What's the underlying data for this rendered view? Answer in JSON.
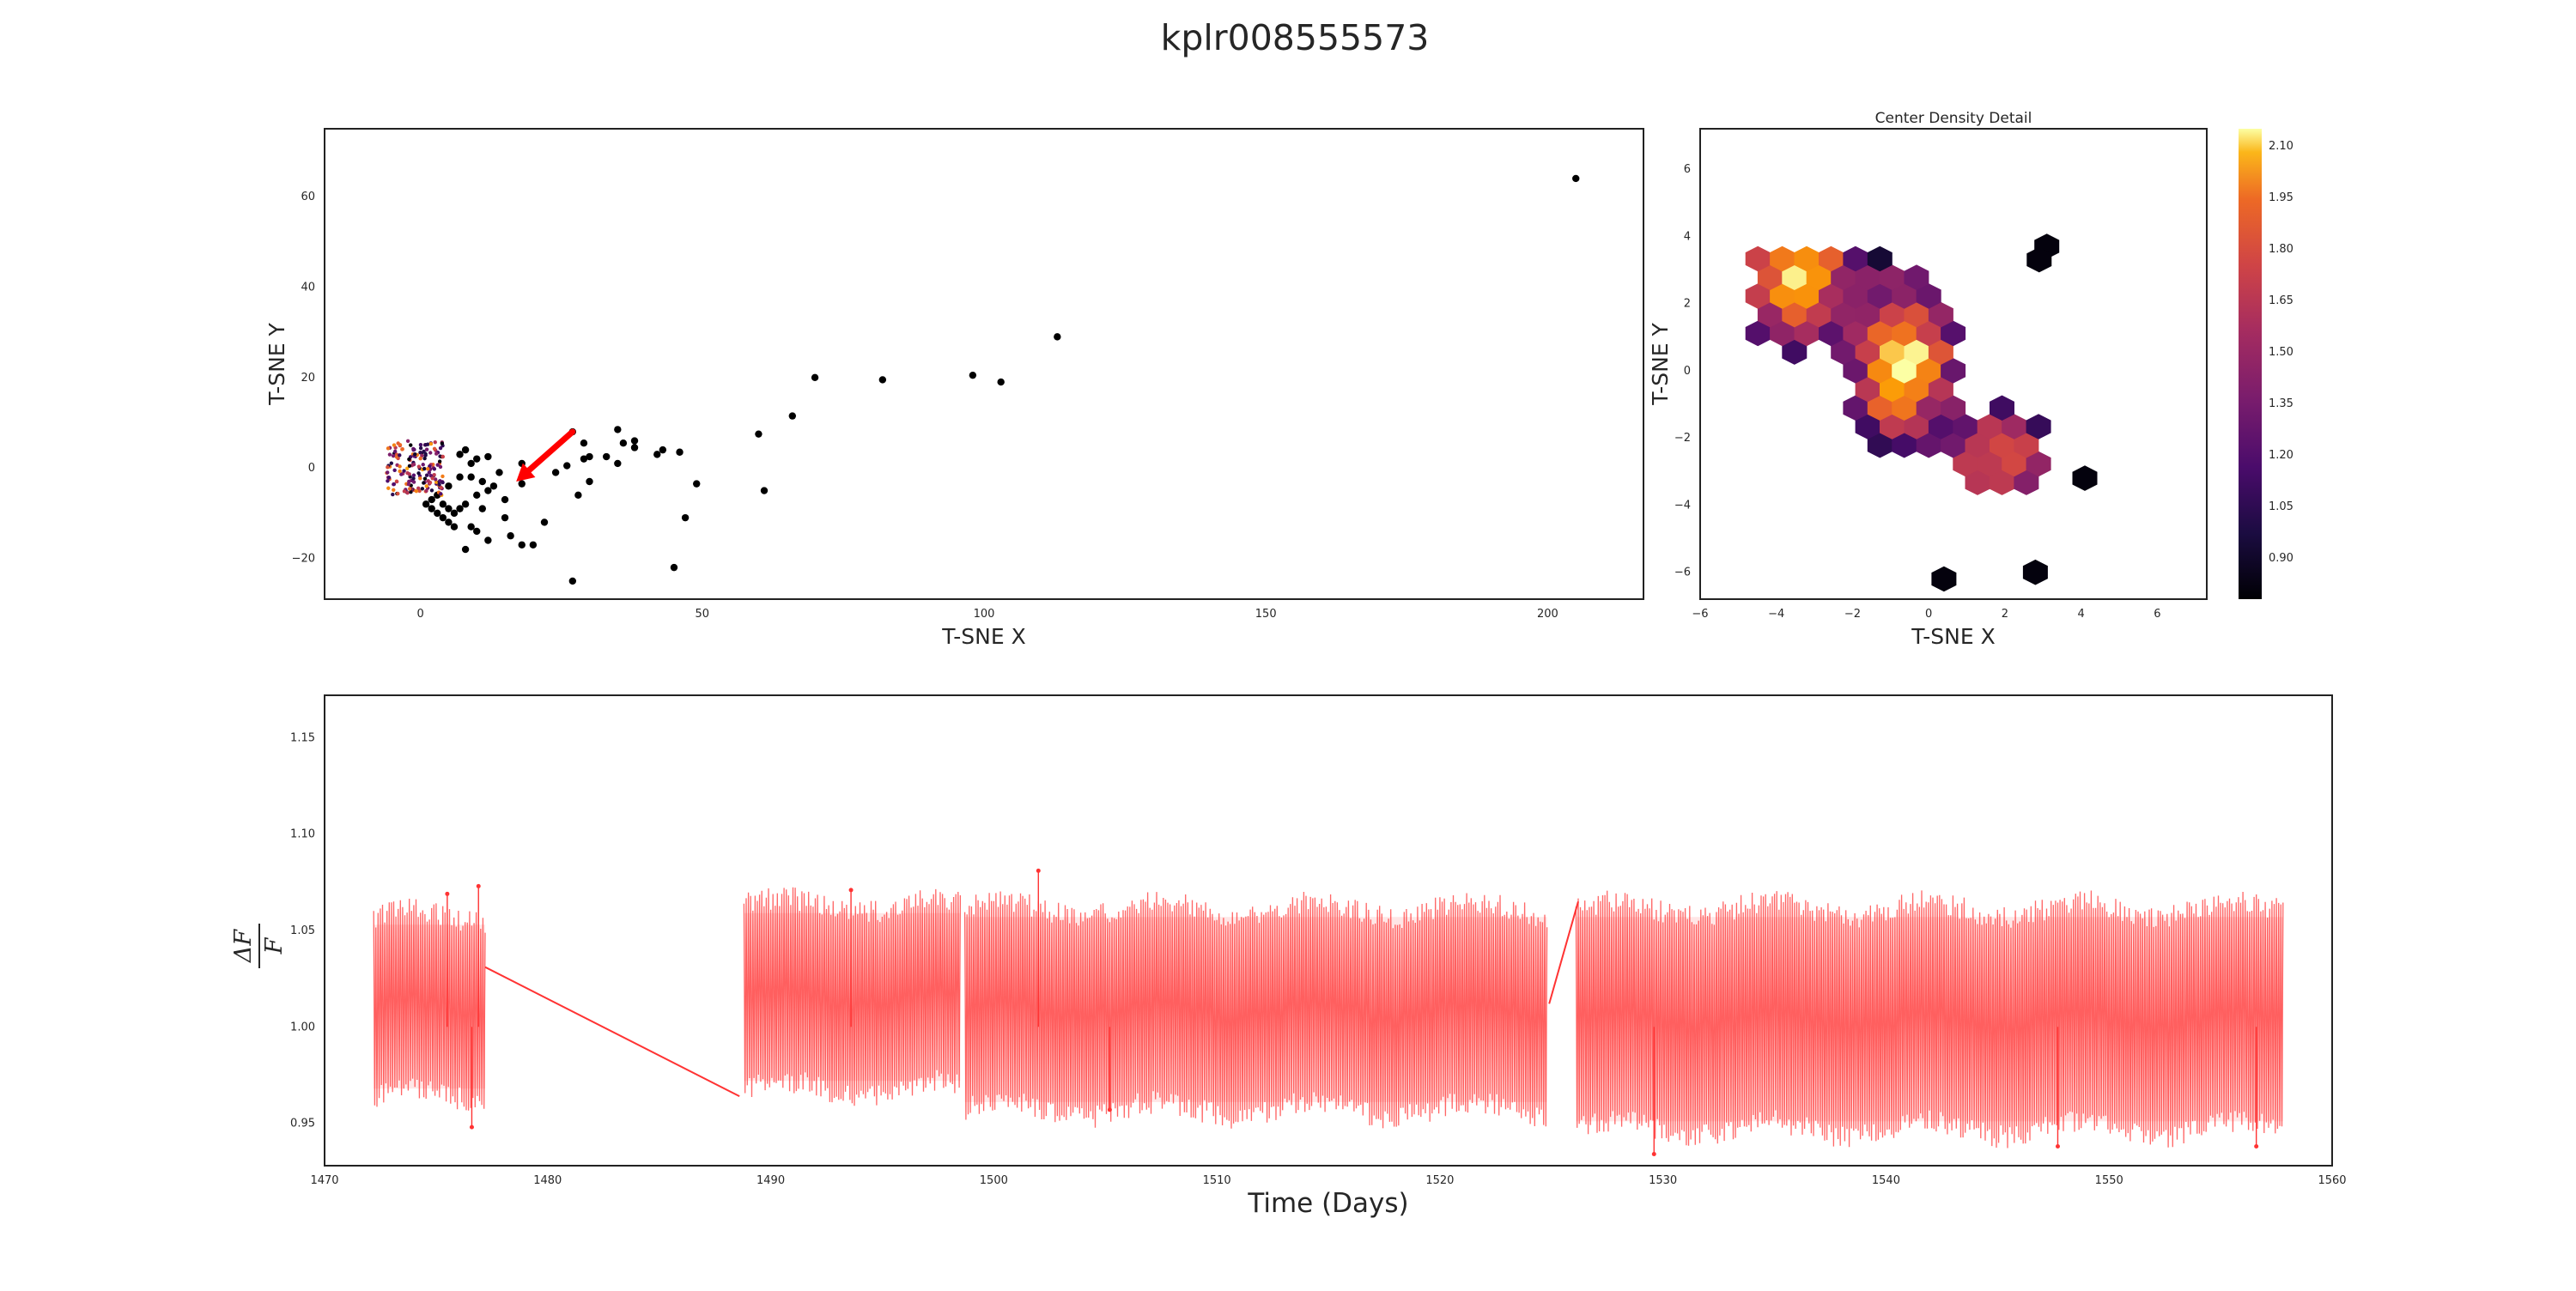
{
  "figure_title": "kplr008555573",
  "colors": {
    "scatter_point": "#000000",
    "arrow": "#ff0000",
    "lightcurve": "#ff3333",
    "frame": "#222222"
  },
  "chart_data": [
    {
      "id": "tsne-overview",
      "type": "scatter",
      "title": "",
      "xlabel": "T-SNE X",
      "ylabel": "T-SNE Y",
      "xlim": [
        -17,
        217
      ],
      "ylim": [
        -29,
        75
      ],
      "xticks": [
        0,
        50,
        100,
        150,
        200
      ],
      "yticks": [
        -20,
        0,
        20,
        40,
        60
      ],
      "grid": false,
      "points": [
        [
          205,
          64
        ],
        [
          113,
          29
        ],
        [
          103,
          19
        ],
        [
          98,
          20.5
        ],
        [
          82,
          19.5
        ],
        [
          70,
          20
        ],
        [
          66,
          11.5
        ],
        [
          60,
          7.5
        ],
        [
          61,
          -5
        ],
        [
          49,
          -3.5
        ],
        [
          47,
          -11
        ],
        [
          45,
          -22
        ],
        [
          46,
          3.5
        ],
        [
          43,
          4
        ],
        [
          42,
          3
        ],
        [
          38,
          6
        ],
        [
          38,
          4.5
        ],
        [
          36,
          5.5
        ],
        [
          35,
          8.5
        ],
        [
          35,
          1
        ],
        [
          33,
          2.5
        ],
        [
          30,
          2.5
        ],
        [
          29,
          2
        ],
        [
          29,
          5.5
        ],
        [
          30,
          -3
        ],
        [
          28,
          -6
        ],
        [
          27,
          -25
        ],
        [
          27,
          8
        ],
        [
          26,
          0.5
        ],
        [
          24,
          -1
        ],
        [
          22,
          -12
        ],
        [
          20,
          -17
        ],
        [
          18,
          -3.5
        ],
        [
          18,
          1
        ],
        [
          18,
          -17
        ],
        [
          16,
          -15
        ],
        [
          15,
          -7
        ],
        [
          15,
          -11
        ],
        [
          14,
          -1
        ],
        [
          13,
          -4
        ],
        [
          12,
          -16
        ],
        [
          12,
          -5
        ],
        [
          12,
          2.5
        ],
        [
          11,
          -3
        ],
        [
          11,
          -9
        ],
        [
          10,
          2
        ],
        [
          10,
          -14
        ],
        [
          10,
          -6
        ],
        [
          9,
          -13
        ],
        [
          9,
          -2
        ],
        [
          9,
          1
        ],
        [
          8,
          -18
        ],
        [
          8,
          -8
        ],
        [
          8,
          4
        ],
        [
          7,
          -9
        ],
        [
          7,
          3
        ],
        [
          7,
          -2
        ],
        [
          6,
          -13
        ],
        [
          6,
          -10
        ],
        [
          5,
          -9
        ],
        [
          5,
          -12
        ],
        [
          5,
          -4
        ],
        [
          4,
          -11
        ],
        [
          4,
          -8
        ],
        [
          3,
          -10
        ],
        [
          3,
          -6
        ],
        [
          2,
          -9
        ],
        [
          2,
          -7
        ],
        [
          1,
          -8
        ]
      ],
      "cluster": {
        "x_range": [
          -6,
          4
        ],
        "y_range": [
          -6,
          6
        ]
      },
      "annotation": {
        "type": "arrow",
        "from": [
          27,
          8
        ],
        "to": [
          17,
          -3
        ]
      }
    },
    {
      "id": "center-density",
      "type": "heatmap",
      "title": "Center Density Detail",
      "xlabel": "T-SNE X",
      "ylabel": "T-SNE Y",
      "xlim": [
        -6,
        7.3
      ],
      "ylim": [
        -6.8,
        7.2
      ],
      "xticks": [
        -6,
        -4,
        -2,
        0,
        2,
        4,
        6
      ],
      "yticks": [
        -6,
        -4,
        -2,
        0,
        2,
        4,
        6
      ],
      "grid": false,
      "colorscale": "inferno",
      "hex_size": 0.37,
      "colorbar": {
        "range": [
          0.78,
          2.15
        ],
        "ticks": [
          "2.10",
          "1.95",
          "1.80",
          "1.65",
          "1.50",
          "1.35",
          "1.20",
          "1.05",
          "0.90"
        ]
      },
      "density_centers": [
        {
          "x": -3.5,
          "y": 3.0,
          "sx": 0.9,
          "sy": 1.2,
          "w": 0.9
        },
        {
          "x": -0.7,
          "y": 0.3,
          "sx": 0.8,
          "sy": 1.4,
          "w": 1.0
        },
        {
          "x": 1.0,
          "y": 6.0,
          "sx": 0.4,
          "sy": 0.7,
          "w": 1.1
        },
        {
          "x": 1.8,
          "y": -2.5,
          "sx": 0.8,
          "sy": 0.9,
          "w": 0.6
        },
        {
          "x": -2.6,
          "y": -4.5,
          "sx": 0.5,
          "sy": 0.6,
          "w": 0.6
        }
      ],
      "outliers": [
        [
          4.1,
          -3.2
        ],
        [
          2.8,
          -6.0
        ],
        [
          0.4,
          -6.2
        ],
        [
          3.1,
          3.7
        ],
        [
          2.9,
          3.3
        ]
      ]
    },
    {
      "id": "light-curve",
      "type": "line",
      "title": "",
      "xlabel": "Time (Days)",
      "ylabel": "ΔF/F",
      "xlim": [
        1470,
        1560
      ],
      "ylim": [
        0.928,
        1.172
      ],
      "xticks": [
        1470,
        1480,
        1490,
        1500,
        1510,
        1520,
        1530,
        1540,
        1550,
        1560
      ],
      "yticks": [
        "0.95",
        "1.00",
        "1.05",
        "1.10",
        "1.15"
      ],
      "grid": false,
      "series": [
        {
          "segments": [
            {
              "start": 1472.2,
              "end": 1477.2,
              "low": 0.958,
              "high": 1.063,
              "spikes": [
                [
                  1475.5,
                  1.069
                ],
                [
                  1476.9,
                  1.073
                ],
                [
                  1476.6,
                  0.948
                ]
              ]
            },
            {
              "start": 1488.8,
              "end": 1498.5,
              "low": 0.962,
              "high": 1.069,
              "spikes": [
                [
                  1493.6,
                  1.071
                ]
              ]
            },
            {
              "start": 1498.7,
              "end": 1524.8,
              "low": 0.951,
              "high": 1.067,
              "spikes": [
                [
                  1502.0,
                  1.081
                ],
                [
                  1505.2,
                  0.957
                ]
              ]
            },
            {
              "start": 1526.1,
              "end": 1557.8,
              "low": 0.941,
              "high": 1.067,
              "spikes": [
                [
                  1529.6,
                  0.934
                ],
                [
                  1547.7,
                  0.938
                ],
                [
                  1556.6,
                  0.938
                ]
              ]
            }
          ],
          "gap_links": [
            [
              1477.2,
              1.031,
              1488.6,
              0.964
            ],
            [
              1524.9,
              1.012,
              1526.2,
              1.065
            ]
          ]
        }
      ]
    }
  ]
}
